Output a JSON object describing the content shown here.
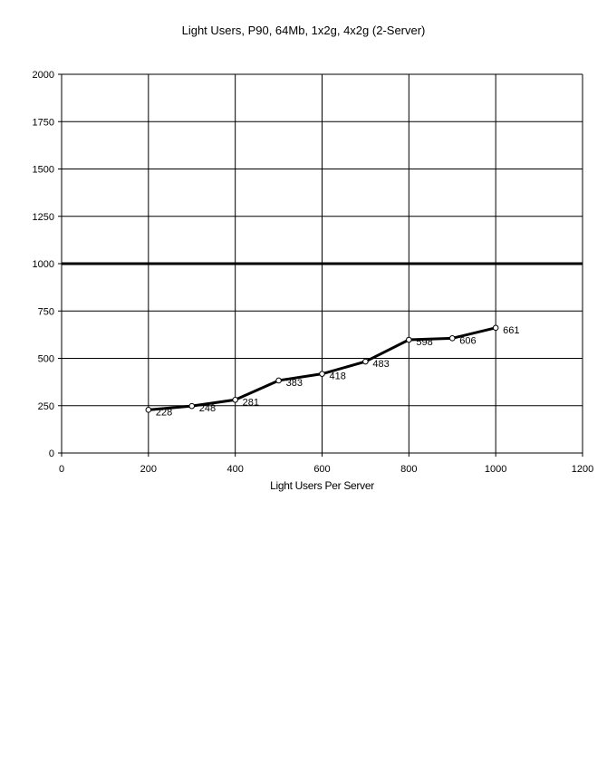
{
  "chart_data": {
    "type": "line",
    "title": "Light Users, P90, 64Mb, 1x2g, 4x2g (2-Server)",
    "xlabel": "Light Users Per Server",
    "ylabel": "",
    "xlim": [
      0,
      1200
    ],
    "ylim": [
      0,
      2000
    ],
    "x_ticks": [
      0,
      200,
      400,
      600,
      800,
      1000,
      1200
    ],
    "y_ticks": [
      0,
      250,
      500,
      750,
      1000,
      1250,
      1500,
      1750,
      2000
    ],
    "grid": true,
    "legend": "none",
    "reference_line": {
      "y": 1000
    },
    "series": [
      {
        "x": [
          200,
          300,
          400,
          500,
          600,
          700,
          800,
          900,
          1000
        ],
        "y": [
          228,
          248,
          281,
          383,
          418,
          483,
          598,
          606,
          661
        ],
        "labels": [
          "228",
          "248",
          "281",
          "383",
          "418",
          "483",
          "598",
          "606",
          "661"
        ],
        "color": "#000000"
      }
    ]
  }
}
